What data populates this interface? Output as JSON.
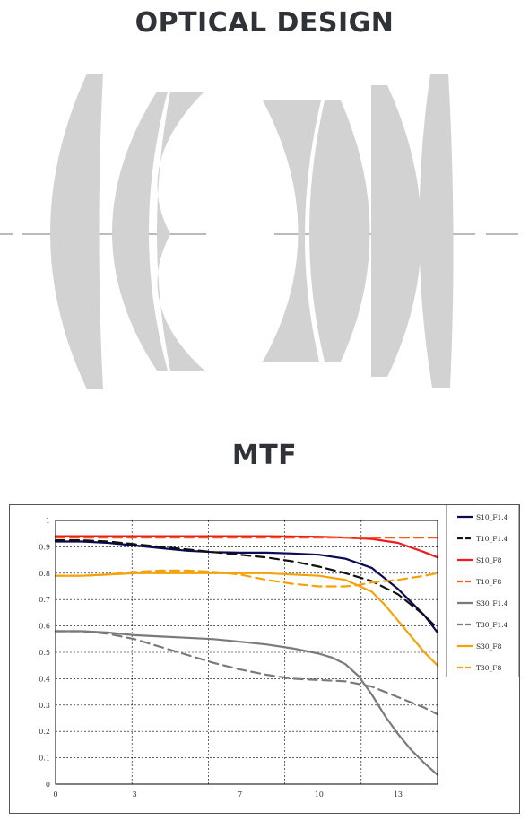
{
  "page": {
    "optical_title": "OPTICAL DESIGN",
    "mtf_title": "MTF"
  },
  "colors": {
    "lens_fill": "#d2d2d2",
    "axis_line": "#bbbbbb",
    "title": "#2f3237"
  },
  "chart_data": {
    "type": "line",
    "title": "",
    "xlabel": "",
    "ylabel": "",
    "xlim": [
      0,
      14.5
    ],
    "ylim": [
      0,
      1
    ],
    "x_ticks": [
      0,
      3,
      7,
      10,
      13
    ],
    "x_tick_labels": [
      "0",
      "3",
      "7",
      "10",
      "13"
    ],
    "x_grid": [
      0,
      2.9,
      5.8,
      8.7,
      11.6,
      14.5
    ],
    "y_ticks": [
      0,
      0.1,
      0.2,
      0.3,
      0.4,
      0.5,
      0.6,
      0.7,
      0.8,
      0.9,
      1
    ],
    "y_tick_labels": [
      "0",
      "0.1",
      "0.2",
      "0.3",
      "0.4",
      "0.5",
      "0.6",
      "0.7",
      "0.8",
      "0.9",
      "1"
    ],
    "grid": true,
    "legend_position": "right",
    "series": [
      {
        "name": "S10_F1.4",
        "color": "#0a0a55",
        "dash": false,
        "x": [
          0,
          1,
          2,
          3,
          4,
          5,
          6,
          7,
          8,
          9,
          10,
          11,
          12,
          13,
          14,
          14.5
        ],
        "y": [
          0.92,
          0.92,
          0.915,
          0.905,
          0.895,
          0.885,
          0.88,
          0.878,
          0.878,
          0.875,
          0.87,
          0.855,
          0.82,
          0.74,
          0.64,
          0.575
        ]
      },
      {
        "name": "T10_F1.4",
        "color": "#111111",
        "dash": true,
        "x": [
          0,
          1,
          2,
          3,
          4,
          5,
          6,
          7,
          8,
          9,
          10,
          11,
          12,
          13,
          14,
          14.5
        ],
        "y": [
          0.925,
          0.925,
          0.92,
          0.91,
          0.9,
          0.89,
          0.88,
          0.87,
          0.86,
          0.845,
          0.825,
          0.8,
          0.77,
          0.72,
          0.64,
          0.59
        ]
      },
      {
        "name": "S10_F8",
        "color": "#ee1c1c",
        "dash": false,
        "x": [
          0,
          2,
          4,
          6,
          8,
          10,
          11,
          12,
          13,
          14,
          14.5
        ],
        "y": [
          0.94,
          0.94,
          0.94,
          0.94,
          0.94,
          0.938,
          0.935,
          0.93,
          0.915,
          0.88,
          0.86
        ]
      },
      {
        "name": "T10_F8",
        "color": "#f25a1e",
        "dash": true,
        "x": [
          0,
          2,
          4,
          6,
          8,
          10,
          11,
          12,
          13,
          14,
          14.5
        ],
        "y": [
          0.935,
          0.935,
          0.935,
          0.935,
          0.935,
          0.935,
          0.935,
          0.935,
          0.935,
          0.935,
          0.935
        ]
      },
      {
        "name": "S30_F1.4",
        "color": "#7a7a7a",
        "dash": false,
        "x": [
          0,
          1,
          2,
          3,
          4,
          5,
          6,
          7,
          8,
          9,
          10,
          10.5,
          11,
          11.5,
          12,
          12.5,
          13,
          13.5,
          14,
          14.5
        ],
        "y": [
          0.58,
          0.58,
          0.575,
          0.565,
          0.56,
          0.555,
          0.55,
          0.54,
          0.53,
          0.515,
          0.495,
          0.48,
          0.455,
          0.41,
          0.34,
          0.26,
          0.19,
          0.13,
          0.08,
          0.035
        ]
      },
      {
        "name": "T30_F1.4",
        "color": "#7a7a7a",
        "dash": true,
        "x": [
          0,
          1,
          2,
          3,
          4,
          5,
          6,
          7,
          8,
          9,
          10,
          11,
          12,
          13,
          14,
          14.5
        ],
        "y": [
          0.58,
          0.58,
          0.57,
          0.55,
          0.52,
          0.49,
          0.46,
          0.435,
          0.415,
          0.4,
          0.395,
          0.39,
          0.37,
          0.33,
          0.29,
          0.265
        ]
      },
      {
        "name": "S30_F8",
        "color": "#f5a20a",
        "dash": false,
        "x": [
          0,
          1,
          2,
          3,
          4,
          5,
          6,
          7,
          8,
          9,
          10,
          11,
          12,
          12.5,
          13,
          13.5,
          14,
          14.5
        ],
        "y": [
          0.79,
          0.79,
          0.795,
          0.8,
          0.8,
          0.8,
          0.8,
          0.8,
          0.8,
          0.795,
          0.79,
          0.775,
          0.73,
          0.68,
          0.62,
          0.56,
          0.5,
          0.45
        ]
      },
      {
        "name": "T30_F8",
        "color": "#f5a20a",
        "dash": true,
        "x": [
          0,
          1,
          2,
          3,
          4,
          5,
          6,
          7,
          8,
          9,
          10,
          11,
          11.5,
          12,
          13,
          14,
          14.5
        ],
        "y": [
          0.79,
          0.79,
          0.795,
          0.805,
          0.81,
          0.81,
          0.805,
          0.795,
          0.775,
          0.76,
          0.75,
          0.75,
          0.755,
          0.765,
          0.775,
          0.79,
          0.8
        ]
      }
    ]
  }
}
